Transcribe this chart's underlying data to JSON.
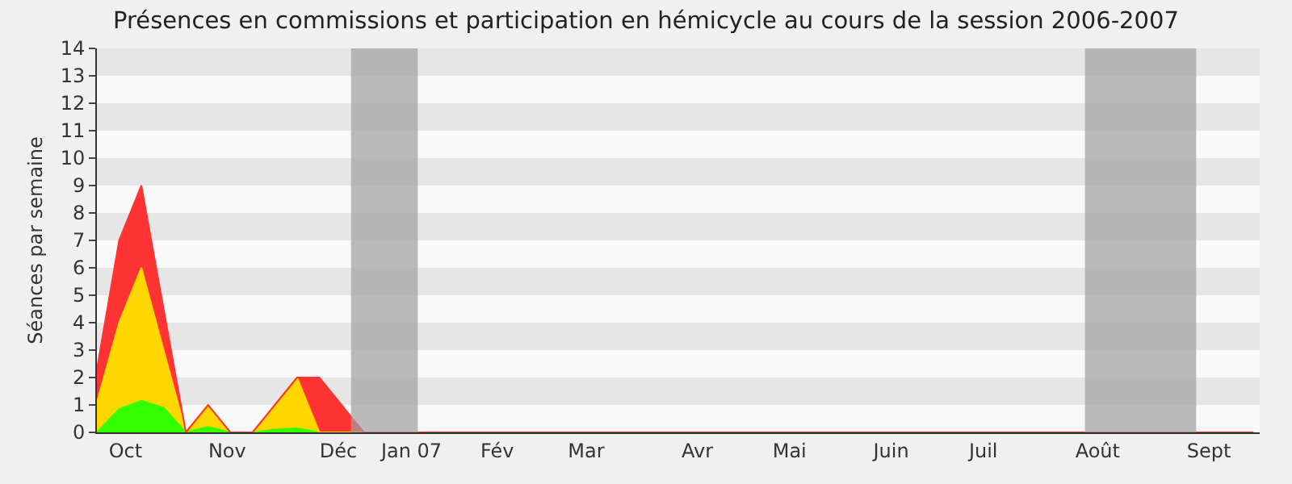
{
  "chart_data": {
    "type": "area",
    "stacked": true,
    "title": "Présences en commissions et participation en hémicycle au cours de la session 2006-2007",
    "ylabel": "Séances par semaine",
    "x": [
      "2006-10-01",
      "2006-10-08",
      "2006-10-15",
      "2006-10-22",
      "2006-10-29",
      "2006-11-05",
      "2006-11-12",
      "2006-11-19",
      "2006-11-26",
      "2006-12-03",
      "2006-12-10",
      "2006-12-17",
      "2006-12-24",
      "2006-12-31",
      "2007-01-07",
      "2007-01-14",
      "2007-01-21",
      "2007-01-28",
      "2007-02-04",
      "2007-02-11",
      "2007-02-18",
      "2007-02-25",
      "2007-03-04",
      "2007-03-11",
      "2007-03-18",
      "2007-03-25",
      "2007-04-01",
      "2007-04-08",
      "2007-04-15",
      "2007-04-22",
      "2007-04-29",
      "2007-05-06",
      "2007-05-13",
      "2007-05-20",
      "2007-05-27",
      "2007-06-03",
      "2007-06-10",
      "2007-06-17",
      "2007-06-24",
      "2007-07-01",
      "2007-07-08",
      "2007-07-15",
      "2007-07-22",
      "2007-07-29",
      "2007-08-05",
      "2007-08-12",
      "2007-08-19",
      "2007-08-26",
      "2007-09-02",
      "2007-09-09",
      "2007-09-16",
      "2007-09-23",
      "2007-09-30"
    ],
    "series": [
      {
        "color": "#33ff00",
        "values": [
          0,
          0.85,
          1.15,
          0.9,
          0,
          0.2,
          0,
          0,
          0.1,
          0.15,
          0,
          0,
          0,
          0,
          0,
          0,
          0,
          0,
          0,
          0,
          0,
          0,
          0,
          0,
          0,
          0,
          0,
          0,
          0,
          0,
          0,
          0,
          0,
          0,
          0,
          0,
          0,
          0,
          0,
          0,
          0,
          0,
          0,
          0,
          0,
          0,
          0,
          0,
          0,
          0,
          0,
          0,
          0
        ]
      },
      {
        "color": "#ffd700",
        "values": [
          1.1,
          3.15,
          4.85,
          2.1,
          0,
          0.8,
          0,
          0,
          0.9,
          1.85,
          0,
          0,
          0,
          0,
          0,
          0,
          0,
          0,
          0,
          0,
          0,
          0,
          0,
          0,
          0,
          0,
          0,
          0,
          0,
          0,
          0,
          0,
          0,
          0,
          0,
          0,
          0,
          0,
          0,
          0,
          0,
          0,
          0,
          0,
          0,
          0,
          0,
          0,
          0,
          0,
          0,
          0,
          0
        ]
      },
      {
        "color": "#ff3333",
        "values": [
          1.2,
          3,
          3,
          1.5,
          0,
          0,
          0,
          0,
          0,
          0,
          2,
          1,
          0,
          0,
          0,
          0,
          0,
          0,
          0,
          0,
          0,
          0,
          0,
          0,
          0,
          0,
          0,
          0,
          0,
          0,
          0,
          0,
          0,
          0,
          0,
          0,
          0,
          0,
          0,
          0,
          0,
          0,
          0,
          0,
          0,
          0,
          0,
          0,
          0,
          0,
          0,
          0,
          0
        ]
      }
    ],
    "xlim": [
      "2006-10-01",
      "2007-10-02"
    ],
    "xticks": [
      {
        "value": "2006-10-10",
        "label": "Oct"
      },
      {
        "value": "2006-11-11",
        "label": "Nov"
      },
      {
        "value": "2006-12-16",
        "label": "Déc"
      },
      {
        "value": "2007-01-08",
        "label": "Jan 07"
      },
      {
        "value": "2007-02-04",
        "label": "Fév"
      },
      {
        "value": "2007-03-04",
        "label": "Mar"
      },
      {
        "value": "2007-04-08",
        "label": "Avr"
      },
      {
        "value": "2007-05-07",
        "label": "Mai"
      },
      {
        "value": "2007-06-08",
        "label": "Juin"
      },
      {
        "value": "2007-07-07",
        "label": "Juil"
      },
      {
        "value": "2007-08-12",
        "label": "Août"
      },
      {
        "value": "2007-09-16",
        "label": "Sept"
      }
    ],
    "ylim": [
      0,
      14
    ],
    "yticks": [
      0,
      1,
      2,
      3,
      4,
      5,
      6,
      7,
      8,
      9,
      10,
      11,
      12,
      13,
      14
    ],
    "bands": [
      {
        "axis": "x",
        "from": "2006-12-20",
        "to": "2007-01-10",
        "color": "#a0a0a0"
      },
      {
        "axis": "x",
        "from": "2007-08-08",
        "to": "2007-09-12",
        "color": "#a0a0a0"
      }
    ],
    "legend": false
  }
}
